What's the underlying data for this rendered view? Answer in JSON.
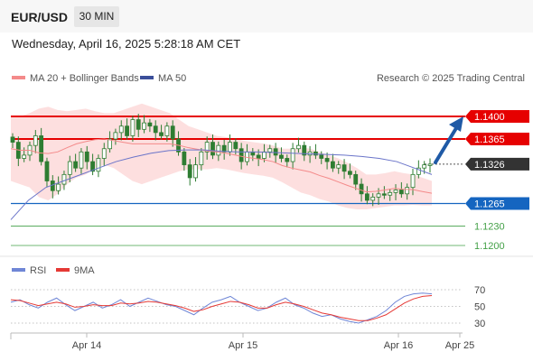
{
  "header": {
    "symbol": "EUR/USD",
    "timeframe": "30 MIN",
    "datetime": "Wednesday, April 16, 2025 5:28:18 AM CET"
  },
  "legend": {
    "ma20": "MA 20 + Bollinger Bands",
    "ma50": "MA 50",
    "credit": "Research © 2025 Trading Central"
  },
  "rsi_legend": {
    "rsi": "RSI",
    "ma": "9MA"
  },
  "colors": {
    "candle": "#2e7d32",
    "ma20": "#f48a8a",
    "band_fill": "#fdd7d7",
    "ma50": "#6a74c9",
    "resistance": "#e60000",
    "support": "#1565c0",
    "target": "#43a047",
    "current": "#333333",
    "arrow": "#1f5aa6",
    "rsi": "#6f86d6",
    "rsi_ma": "#e53935"
  },
  "chart_data": {
    "type": "candlestick",
    "x_ticks": [
      "Apr 14",
      "Apr 15",
      "Apr 16",
      "Apr 25"
    ],
    "price_levels": [
      {
        "label": "1.1400",
        "value": 1.14,
        "kind": "resistance"
      },
      {
        "label": "1.1365",
        "value": 1.1365,
        "kind": "resistance"
      },
      {
        "label": "1.1326",
        "value": 1.1326,
        "kind": "current"
      },
      {
        "label": "1.1265",
        "value": 1.1265,
        "kind": "support"
      },
      {
        "label": "1.1230",
        "value": 1.123,
        "kind": "target"
      },
      {
        "label": "1.1200",
        "value": 1.12,
        "kind": "target"
      }
    ],
    "close": [
      1.136,
      1.1335,
      1.134,
      1.1355,
      1.137,
      1.133,
      1.13,
      1.1285,
      1.1295,
      1.131,
      1.133,
      1.132,
      1.1345,
      1.133,
      1.1315,
      1.1335,
      1.135,
      1.1365,
      1.1375,
      1.1385,
      1.137,
      1.1395,
      1.138,
      1.139,
      1.1385,
      1.1375,
      1.137,
      1.1385,
      1.1365,
      1.1345,
      1.1325,
      1.1305,
      1.1325,
      1.1345,
      1.136,
      1.134,
      1.1355,
      1.1345,
      1.136,
      1.135,
      1.133,
      1.1345,
      1.134,
      1.1335,
      1.1345,
      1.135,
      1.134,
      1.1335,
      1.133,
      1.135,
      1.1355,
      1.134,
      1.1345,
      1.134,
      1.1335,
      1.133,
      1.132,
      1.1325,
      1.1315,
      1.131,
      1.1295,
      1.128,
      1.127,
      1.1275,
      1.128,
      1.1278,
      1.1282,
      1.1286,
      1.128,
      1.129,
      1.131,
      1.132,
      1.1325,
      1.1326
    ],
    "bb_upper": [
      1.14,
      1.14,
      1.1405,
      1.1412,
      1.1415,
      1.141,
      1.1408,
      1.141,
      1.1412,
      1.1408,
      1.1405,
      1.1405,
      1.141,
      1.1415,
      1.142,
      1.1415,
      1.141,
      1.1405,
      1.1395,
      1.1385,
      1.138,
      1.1375,
      1.137,
      1.1368,
      1.1365,
      1.1362,
      1.136,
      1.1358,
      1.1355,
      1.135,
      1.135,
      1.1352,
      1.135,
      1.1345,
      1.134,
      1.1335,
      1.1328,
      1.132,
      1.131,
      1.131,
      1.1312,
      1.1315,
      1.1312,
      1.131,
      1.1305,
      1.13
    ],
    "bb_lower": [
      1.13,
      1.1295,
      1.129,
      1.1275,
      1.127,
      1.128,
      1.1295,
      1.1305,
      1.131,
      1.132,
      1.1325,
      1.132,
      1.131,
      1.13,
      1.1295,
      1.13,
      1.1305,
      1.131,
      1.1315,
      1.1318,
      1.1318,
      1.1318,
      1.132,
      1.1318,
      1.1315,
      1.1312,
      1.131,
      1.1308,
      1.1305,
      1.1298,
      1.129,
      1.1282,
      1.1278,
      1.1272,
      1.1268,
      1.1262,
      1.1258,
      1.1256,
      1.1256,
      1.1258,
      1.126,
      1.1262,
      1.1262,
      1.1263,
      1.1262,
      1.1262
    ],
    "ma50": [
      1.124,
      1.127,
      1.129,
      1.13,
      1.131,
      1.132,
      1.133,
      1.1337,
      1.1343,
      1.1347,
      1.1348,
      1.1348,
      1.1346,
      1.1345,
      1.1345,
      1.1344,
      1.1343,
      1.1342,
      1.1341,
      1.134,
      1.1338,
      1.1335,
      1.133,
      1.132,
      1.131
    ],
    "rsi": [
      55,
      58,
      52,
      48,
      55,
      60,
      52,
      45,
      50,
      55,
      48,
      52,
      58,
      50,
      55,
      60,
      56,
      52,
      50,
      45,
      40,
      48,
      55,
      58,
      62,
      55,
      50,
      45,
      48,
      55,
      60,
      52,
      48,
      42,
      38,
      40,
      35,
      32,
      30,
      34,
      38,
      45,
      55,
      62,
      65,
      66,
      65
    ],
    "rsi_ma": [
      58,
      57,
      54,
      51,
      53,
      55,
      53,
      49,
      50,
      52,
      51,
      51,
      54,
      53,
      54,
      56,
      55,
      53,
      51,
      48,
      44,
      46,
      50,
      53,
      56,
      55,
      52,
      48,
      48,
      52,
      55,
      53,
      50,
      46,
      42,
      40,
      37,
      35,
      33,
      33,
      36,
      40,
      47,
      54,
      59,
      62,
      63
    ],
    "rsi_levels": [
      70,
      50,
      30
    ]
  }
}
